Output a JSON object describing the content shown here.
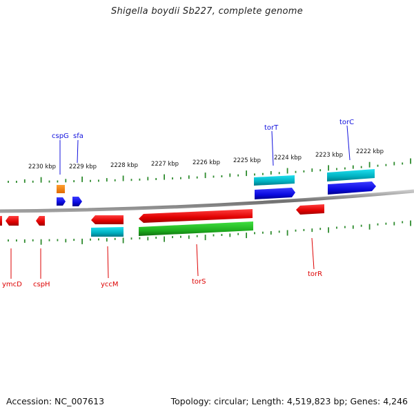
{
  "title": "Shigella boydii Sb227, complete genome",
  "footer": {
    "accession": "Accession: NC_007613",
    "summary": "Topology: circular; Length: 4,519,823 bp; Genes: 4,246"
  },
  "ruler": {
    "labels": [
      "2230 kbp",
      "2229 kbp",
      "2228 kbp",
      "2227 kbp",
      "2226 kbp",
      "2225 kbp",
      "2224 kbp",
      "2223 kbp",
      "2222 kbp"
    ],
    "tick_color": "#2e8b2e"
  },
  "genes_top": [
    {
      "name": "cspG",
      "color": "#1010dd"
    },
    {
      "name": "sfa",
      "color": "#1010dd"
    },
    {
      "name": "torT",
      "color": "#1010dd"
    },
    {
      "name": "torC",
      "color": "#1010dd"
    }
  ],
  "genes_bottom": [
    {
      "name": "ymcD",
      "color": "#dd0000"
    },
    {
      "name": "cspH",
      "color": "#dd0000"
    },
    {
      "name": "yccM",
      "color": "#dd0000"
    },
    {
      "name": "torS",
      "color": "#dd0000"
    },
    {
      "name": "torR",
      "color": "#dd0000"
    }
  ],
  "colors": {
    "forward_cds": "#1010dd",
    "reverse_cds": "#dd0000",
    "forward_feature": "#00b8c8",
    "reverse_feature": "#20b020",
    "rna": "#ff8800",
    "backbone": "#808080"
  }
}
